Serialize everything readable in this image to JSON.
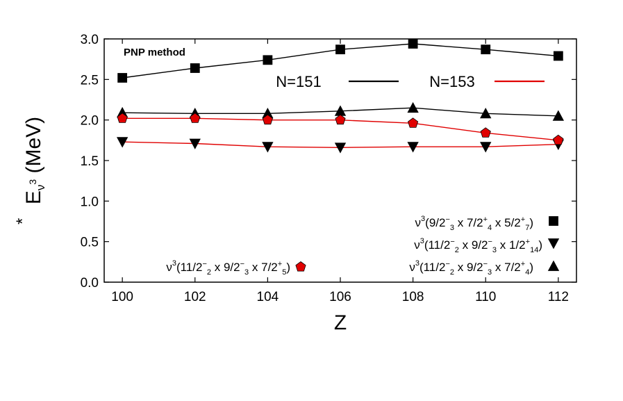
{
  "chart_data": {
    "type": "line",
    "annotation": "PNP method",
    "xlabel": "Z",
    "ylabel": {
      "base": "E",
      "superscript": "*",
      "subscript": "ν",
      "subsup": "3",
      "unit": "(MeV)"
    },
    "xlim": [
      99.5,
      112.5
    ],
    "ylim": [
      0,
      3.0
    ],
    "xticks": [
      "100",
      "102",
      "104",
      "106",
      "108",
      "110",
      "112"
    ],
    "yticks": [
      "0.0",
      "0.5",
      "1.0",
      "1.5",
      "2.0",
      "2.5",
      "3.0"
    ],
    "grid": false,
    "x": [
      100,
      102,
      104,
      106,
      108,
      110,
      112
    ],
    "line_legend": [
      {
        "label": "N=151",
        "color": "#000000"
      },
      {
        "label": "N=153",
        "color": "#e00000"
      }
    ],
    "series": [
      {
        "marker": "square",
        "line_color": "#000000",
        "marker_fill": "#000000",
        "values": [
          2.52,
          2.64,
          2.74,
          2.87,
          2.94,
          2.87,
          2.79
        ],
        "legend": {
          "pre": "ν",
          "nu_sup": "3",
          "parts": [
            [
              "(9/2",
              "",
              "3"
            ],
            [
              " x 7/2",
              "+",
              "4"
            ],
            [
              " x 5/2",
              "+",
              "7"
            ]
          ],
          "close": ")"
        }
      },
      {
        "marker": "triangle-down",
        "line_color": "#e00000",
        "marker_fill": "#000000",
        "values": [
          1.73,
          1.71,
          1.67,
          1.66,
          1.67,
          1.67,
          1.7
        ],
        "legend": {
          "pre": "ν",
          "nu_sup": "3",
          "parts": [
            [
              "(11/2",
              "",
              "2"
            ],
            [
              " x 9/2",
              "",
              "3"
            ],
            [
              " x 1/2",
              "+",
              "14"
            ]
          ],
          "close": ")"
        }
      },
      {
        "marker": "triangle-up",
        "line_color": "#000000",
        "marker_fill": "#000000",
        "values": [
          2.09,
          2.08,
          2.08,
          2.11,
          2.15,
          2.08,
          2.05
        ],
        "legend": {
          "pre": "ν",
          "nu_sup": "3",
          "parts": [
            [
              "(11/2",
              "",
              "2"
            ],
            [
              " x 9/2",
              "",
              "3"
            ],
            [
              " x 7/2",
              "+",
              "4"
            ]
          ],
          "close": ")"
        }
      },
      {
        "marker": "pentagon",
        "line_color": "#e00000",
        "marker_fill": "#e00000",
        "values": [
          2.02,
          2.02,
          2.0,
          2.0,
          1.96,
          1.84,
          1.75
        ],
        "legend": {
          "pre": "ν",
          "nu_sup": "3",
          "parts": [
            [
              "(11/2",
              "",
              "2"
            ],
            [
              " x 9/2",
              "",
              "3"
            ],
            [
              " x 7/2",
              "+",
              "5"
            ]
          ],
          "close": ")"
        }
      }
    ]
  }
}
